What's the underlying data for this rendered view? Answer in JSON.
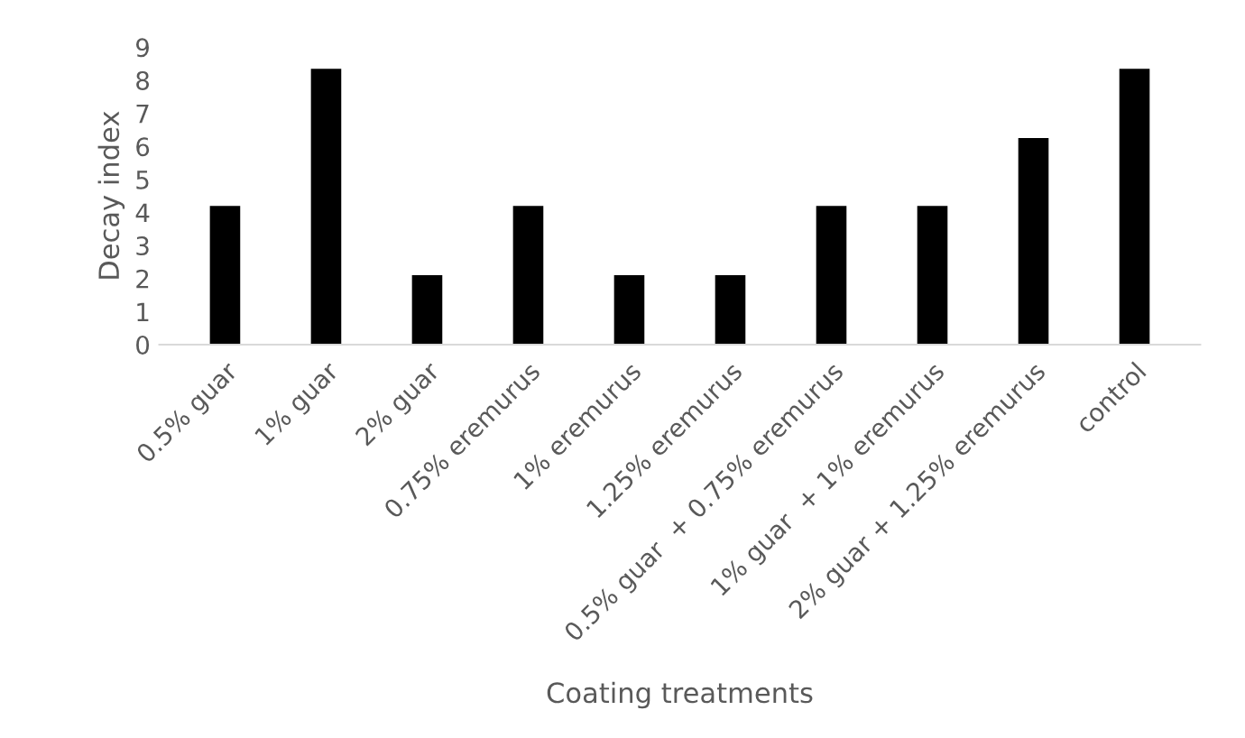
{
  "chart_data": {
    "type": "bar",
    "xlabel": "Coating treatments",
    "ylabel": "Decay index",
    "categories": [
      "0.5% guar",
      "1% guar",
      "2% guar",
      "0.75% eremurus",
      "1% eremurus",
      "1.25% eremurus",
      "0.5% guar  + 0.75% eremurus",
      "1% guar  + 1% eremurus",
      "2% guar + 1.25% eremurus",
      "control"
    ],
    "values": [
      4.2,
      8.35,
      2.1,
      4.2,
      2.1,
      2.1,
      4.2,
      4.2,
      6.25,
      8.35
    ],
    "color": "#000000",
    "ylim": [
      0,
      9
    ],
    "yticks": [
      0,
      1,
      2,
      3,
      4,
      5,
      6,
      7,
      8,
      9
    ],
    "grid": false,
    "legend": false
  }
}
